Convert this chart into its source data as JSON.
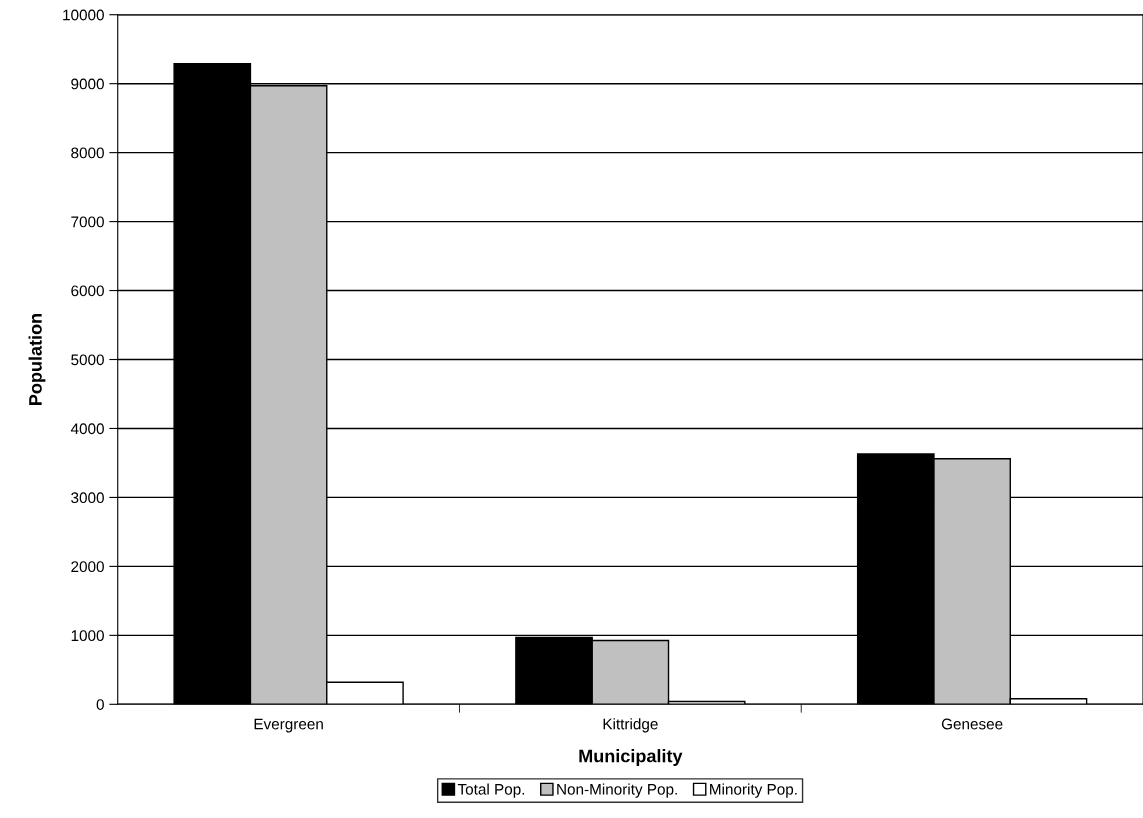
{
  "chart_data": {
    "type": "bar",
    "xlabel": "Municipality",
    "ylabel": "Population",
    "categories": [
      "Evergreen",
      "Kittridge",
      "Genesee"
    ],
    "series": [
      {
        "name": "Total Pop.",
        "color": "#000000",
        "values": [
          9290,
          970,
          3630
        ]
      },
      {
        "name": "Non-Minority Pop.",
        "color": "#c0c0c0",
        "values": [
          8970,
          925,
          3560
        ]
      },
      {
        "name": "Minority Pop.",
        "color": "#ffffff",
        "values": [
          320,
          40,
          80
        ]
      }
    ],
    "ylim": [
      0,
      10000
    ],
    "yticks": [
      0,
      1000,
      2000,
      3000,
      4000,
      5000,
      6000,
      7000,
      8000,
      9000,
      10000
    ],
    "grid": "y",
    "legend": "bottom"
  }
}
